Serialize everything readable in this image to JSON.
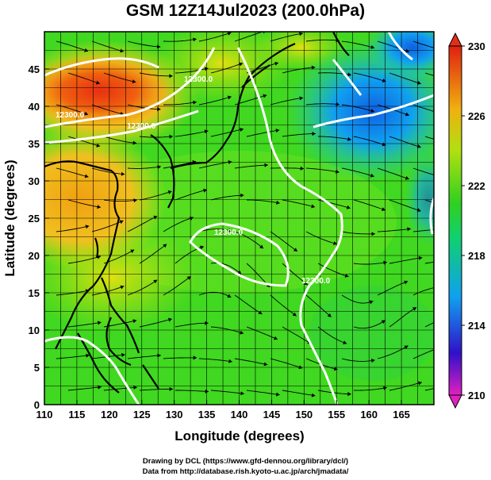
{
  "title": "GSM 12Z14Jul2023 (200.0hPa)",
  "x_axis_label": "Longitude (degrees)",
  "y_axis_label": "Latitude  (degrees)",
  "x_ticks": [
    "110",
    "115",
    "120",
    "125",
    "130",
    "135",
    "140",
    "145",
    "150",
    "155",
    "160",
    "165"
  ],
  "y_ticks": [
    "0",
    "5",
    "10",
    "15",
    "20",
    "25",
    "30",
    "35",
    "40",
    "45"
  ],
  "colorbar": {
    "ticks": [
      "210",
      "214",
      "218",
      "222",
      "226",
      "230"
    ],
    "colors": [
      "#e020c0",
      "#3010c8",
      "#10b0f0",
      "#20d020",
      "#50e020",
      "#a0e010",
      "#f0c010",
      "#f07010",
      "#e02010"
    ]
  },
  "contour_labels": [
    "12300.0",
    "12300.0",
    "12300.0",
    "12300.0",
    "12300.0"
  ],
  "credit_line1": "Drawing by DCL (https://www.gfd-dennou.org/library/dcl/)",
  "credit_line2": "Data from http://database.rish.kyoto-u.ac.jp/arch/jmadata/",
  "map_data": {
    "lon_range": [
      110,
      170
    ],
    "lat_range": [
      0,
      50
    ],
    "variable_units": "temperature-like scalar (colorbar 210–230)",
    "highlights": [
      {
        "name": "warm core NW",
        "lon": 119,
        "lat": 42
      },
      {
        "name": "cold pool NE",
        "lon": 161,
        "lat": 41
      }
    ]
  }
}
